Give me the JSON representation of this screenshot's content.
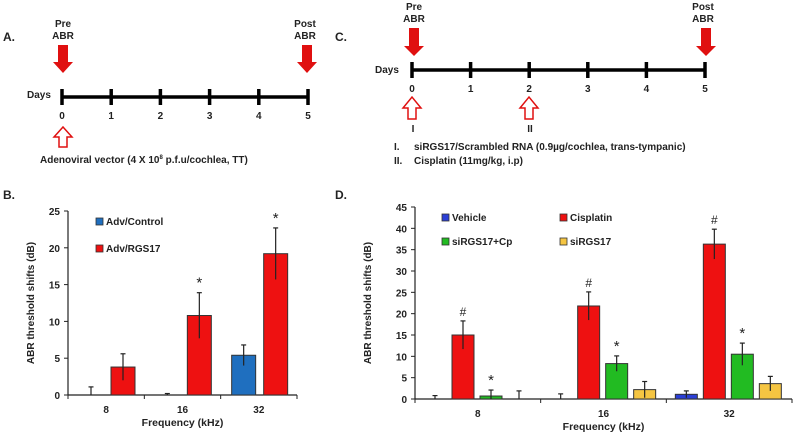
{
  "panel_labels": {
    "a": "A.",
    "b": "B.",
    "c": "C.",
    "d": "D."
  },
  "timeline_a": {
    "pre_line1": "Pre",
    "pre_line2": "ABR",
    "post_line1": "Post",
    "post_line2": "ABR",
    "days_label": "Days",
    "days": [
      "0",
      "1",
      "2",
      "3",
      "4",
      "5"
    ],
    "treatment_pre": "Adenoviral vector (4 X 10",
    "treatment_sup": "8",
    "treatment_post": " p.f.u/cochlea, TT)"
  },
  "timeline_c": {
    "pre_line1": "Pre",
    "pre_line2": "ABR",
    "post_line1": "Post",
    "post_line2": "ABR",
    "days_label": "Days",
    "days": [
      "0",
      "1",
      "2",
      "3",
      "4",
      "5"
    ],
    "markers": [
      "I",
      "II"
    ],
    "legend": [
      {
        "num": "I.",
        "text": "siRGS17/Scrambled RNA (0.9µg/cochlea, trans-tympanic)"
      },
      {
        "num": "II.",
        "text": "Cisplatin (11mg/kg, i.p)"
      }
    ]
  },
  "chart_data": [
    {
      "type": "bar",
      "panel": "B",
      "categories": [
        "8",
        "16",
        "32"
      ],
      "xlabel": "Frequency (kHz)",
      "ylabel": "ABR threshold shifts (dB)",
      "ylim": [
        0,
        25
      ],
      "yticks": [
        "0",
        "5",
        "10",
        "15",
        "20",
        "25"
      ],
      "legend_placement": "top-left",
      "series": [
        {
          "name": "Adv/Control",
          "color": "#1f6fbf",
          "values": [
            0,
            0,
            5.4
          ],
          "errors": [
            1.1,
            0.2,
            1.4
          ],
          "marks": [
            "",
            "",
            ""
          ]
        },
        {
          "name": "Adv/RGS17",
          "color": "#ee1111",
          "values": [
            3.8,
            10.8,
            19.2
          ],
          "errors": [
            1.8,
            3.1,
            3.5
          ],
          "marks": [
            "",
            "*",
            "*"
          ]
        }
      ]
    },
    {
      "type": "bar",
      "panel": "D",
      "categories": [
        "8",
        "16",
        "32"
      ],
      "xlabel": "Frequency (kHz)",
      "ylabel": "ABR threshold shifts (dB)",
      "ylim": [
        0,
        45
      ],
      "yticks": [
        "0",
        "5",
        "10",
        "15",
        "20",
        "25",
        "30",
        "35",
        "40",
        "45"
      ],
      "legend_placement": "top",
      "series": [
        {
          "name": "Vehicle",
          "color": "#2b3fd6",
          "values": [
            0,
            0,
            1.1
          ],
          "errors": [
            0.8,
            1.2,
            0.8
          ],
          "marks": [
            "",
            "",
            ""
          ]
        },
        {
          "name": "Cisplatin",
          "color": "#ee1111",
          "values": [
            15.0,
            21.8,
            36.3
          ],
          "errors": [
            3.3,
            3.3,
            3.5
          ],
          "marks": [
            "#",
            "#",
            "#"
          ]
        },
        {
          "name": "siRGS17+Cp",
          "color": "#22bb22",
          "values": [
            0.7,
            8.3,
            10.5
          ],
          "errors": [
            1.4,
            1.8,
            2.6
          ],
          "marks": [
            "*",
            "*",
            "*"
          ]
        },
        {
          "name": "siRGS17",
          "color": "#f5c542",
          "values": [
            0,
            2.2,
            3.6
          ],
          "errors": [
            1.9,
            1.9,
            1.7
          ],
          "marks": [
            "",
            "",
            ""
          ]
        }
      ]
    }
  ]
}
